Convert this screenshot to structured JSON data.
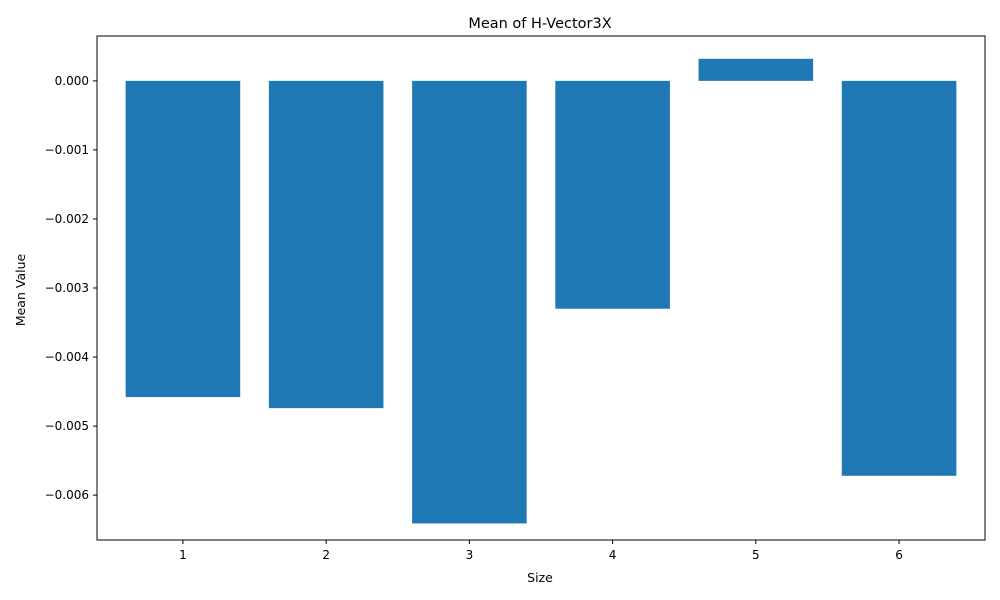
{
  "chart_data": {
    "type": "bar",
    "title": "Mean of H-Vector3X",
    "xlabel": "Size",
    "ylabel": "Mean Value",
    "categories": [
      "1",
      "2",
      "3",
      "4",
      "5",
      "6"
    ],
    "values": [
      -0.00458,
      -0.00474,
      -0.00641,
      -0.0033,
      0.00032,
      -0.00572
    ],
    "ylim": [
      -0.00665,
      0.00065
    ],
    "yticks": [
      0.0,
      -0.001,
      -0.002,
      -0.003,
      -0.004,
      -0.005,
      -0.006
    ],
    "ytick_labels": [
      "0.000",
      "−0.001",
      "−0.002",
      "−0.003",
      "−0.004",
      "−0.005",
      "−0.006"
    ],
    "grid": false,
    "bar_color": "#1f77b4"
  }
}
